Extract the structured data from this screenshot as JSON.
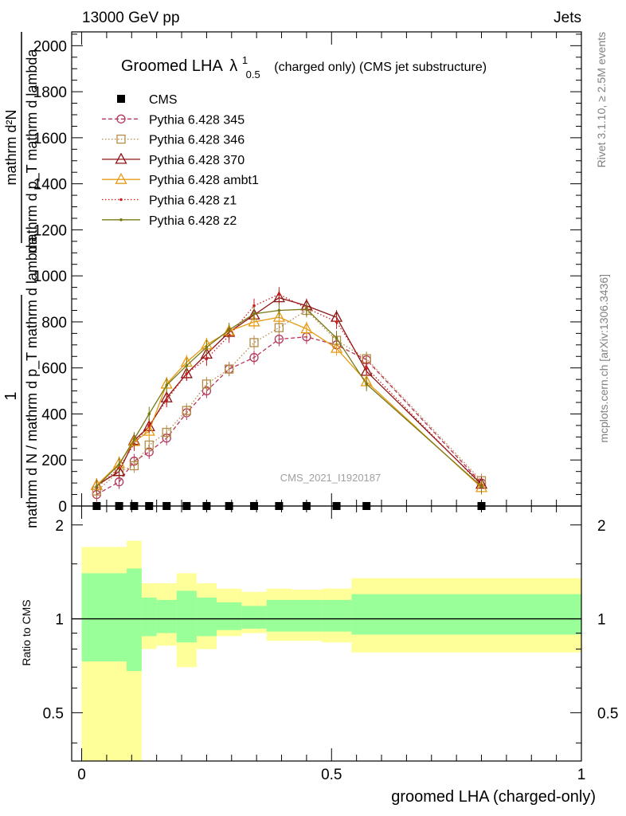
{
  "header": {
    "energy_label": "13000 GeV pp",
    "process_label": "Jets",
    "rivet_label": "Rivet 3.1.10, ≥ 2.5M events",
    "mcplots_label": "mcplots.cern.ch [arXiv:1306.3436]",
    "analysis_label": "CMS_2021_I1920187"
  },
  "chart_data": [
    {
      "type": "line",
      "title_main": "Groomed LHA",
      "title_symbol": "λ",
      "title_sup": "1",
      "title_sub": "0.5",
      "title_rest": "(charged only) (CMS jet substructure)",
      "ylabel_numerator": "1",
      "ylabel_denominator": "mathrm d N / mathrm d p_T mathrm d lambda",
      "ylabel_upper_numerator": "mathrm d²N",
      "ylabel_upper_denominator": "mathrm d p_T mathrm d lambda",
      "ylim": [
        0,
        2060
      ],
      "yticks": [
        0,
        200,
        400,
        600,
        800,
        1000,
        1200,
        1400,
        1600,
        1800,
        2000
      ],
      "xlim": [
        -0.02,
        1.0
      ],
      "grid": false,
      "legend_position": "top-left",
      "x": [
        0.03,
        0.075,
        0.105,
        0.135,
        0.17,
        0.21,
        0.25,
        0.295,
        0.345,
        0.395,
        0.45,
        0.51,
        0.57,
        0.8
      ],
      "series": [
        {
          "name": "CMS",
          "color": "#000000",
          "marker": "square-filled",
          "line": "none",
          "values": [
            0,
            0,
            0,
            0,
            0,
            0,
            0,
            0,
            0,
            0,
            0,
            0,
            0,
            0
          ]
        },
        {
          "name": "Pythia 6.428 345",
          "color": "#b5375a",
          "marker": "circle-open",
          "line": "dashed",
          "values": [
            50,
            105,
            195,
            235,
            295,
            405,
            500,
            595,
            645,
            725,
            735,
            700,
            635,
            100
          ]
        },
        {
          "name": "Pythia 6.428 346",
          "color": "#b48c46",
          "marker": "square-open",
          "line": "dotted",
          "values": [
            65,
            150,
            175,
            265,
            320,
            415,
            530,
            595,
            710,
            775,
            850,
            720,
            640,
            110
          ]
        },
        {
          "name": "Pythia 6.428 370",
          "color": "#8c1414",
          "marker": "triangle-open",
          "line": "solid",
          "values": [
            90,
            150,
            285,
            345,
            470,
            575,
            660,
            755,
            830,
            905,
            870,
            820,
            585,
            95
          ]
        },
        {
          "name": "Pythia 6.428 ambt1",
          "color": "#e69b14",
          "marker": "triangle-open",
          "line": "solid",
          "values": [
            90,
            185,
            280,
            325,
            530,
            625,
            700,
            760,
            800,
            820,
            770,
            685,
            540,
            80
          ]
        },
        {
          "name": "Pythia 6.428 z1",
          "color": "#c81e1e",
          "marker": "dot",
          "line": "dotted",
          "values": [
            80,
            165,
            270,
            350,
            460,
            575,
            640,
            740,
            870,
            920,
            860,
            800,
            600,
            90
          ]
        },
        {
          "name": "Pythia 6.428 z2",
          "color": "#787814",
          "marker": "dot",
          "line": "solid",
          "values": [
            85,
            180,
            290,
            400,
            525,
            610,
            690,
            765,
            835,
            850,
            855,
            730,
            530,
            85
          ]
        }
      ]
    },
    {
      "type": "area",
      "ylabel": "Ratio to CMS",
      "xlabel": "groomed LHA (charged-only)",
      "ylim": [
        0.35,
        2.3
      ],
      "yticks": [
        0.5,
        1,
        2
      ],
      "ytick_labels": [
        "0.5",
        "1",
        "2"
      ],
      "xticks": [
        0,
        0.5,
        1
      ],
      "xtick_labels": [
        "0",
        "0.5",
        "1"
      ],
      "reference_line": 1,
      "band_colors": {
        "outer": "#ffff99",
        "inner": "#99ff99"
      },
      "bins": [
        0.0,
        0.09,
        0.12,
        0.15,
        0.19,
        0.23,
        0.27,
        0.32,
        0.37,
        0.42,
        0.48,
        0.54,
        0.6,
        1.0
      ],
      "outer_band": {
        "upper": [
          1.7,
          1.78,
          1.3,
          1.3,
          1.4,
          1.3,
          1.25,
          1.22,
          1.25,
          1.24,
          1.25,
          1.35,
          1.35
        ],
        "lower": [
          0.3,
          0.3,
          0.8,
          0.82,
          0.7,
          0.8,
          0.88,
          0.9,
          0.85,
          0.85,
          0.84,
          0.78,
          0.78
        ]
      },
      "inner_band": {
        "upper": [
          1.4,
          1.45,
          1.17,
          1.15,
          1.23,
          1.17,
          1.13,
          1.1,
          1.15,
          1.15,
          1.15,
          1.2,
          1.2
        ],
        "lower": [
          0.73,
          0.68,
          0.88,
          0.9,
          0.84,
          0.88,
          0.92,
          0.93,
          0.91,
          0.91,
          0.91,
          0.89,
          0.89
        ]
      }
    }
  ]
}
